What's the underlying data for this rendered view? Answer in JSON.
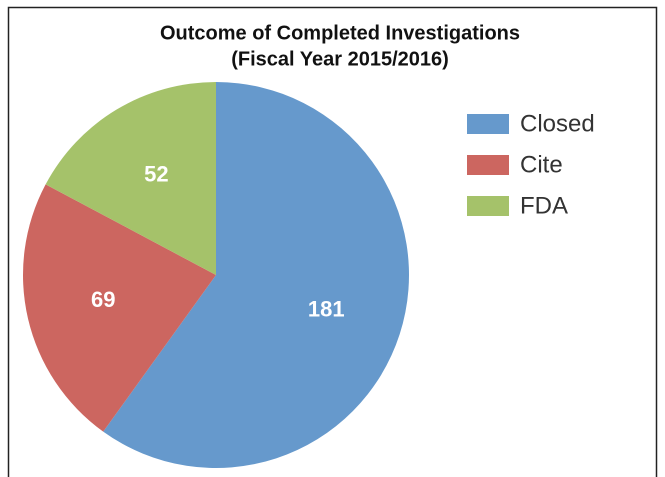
{
  "chart_data": {
    "type": "pie",
    "title": [
      "Outcome of Completed Investigations",
      "(Fiscal Year 2015/2016)"
    ],
    "categories": [
      "Closed",
      "Cite",
      "FDA"
    ],
    "values": [
      181,
      69,
      52
    ],
    "colors": [
      "#6699cc",
      "#cc6660",
      "#a5c26a"
    ],
    "legend": "right"
  }
}
